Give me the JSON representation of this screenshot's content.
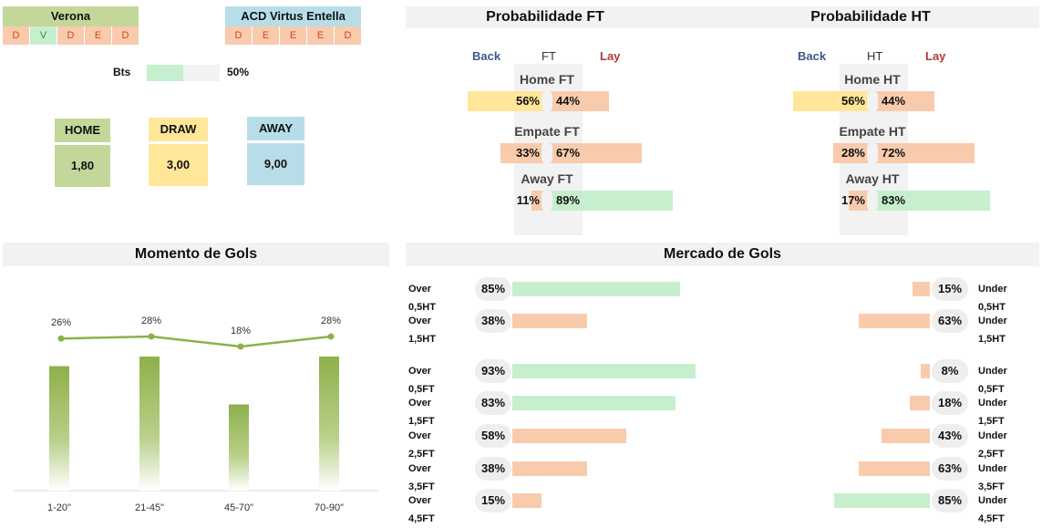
{
  "home_team": {
    "name": "Verona",
    "form": [
      "D",
      "V",
      "D",
      "E",
      "D"
    ]
  },
  "away_team": {
    "name": "ACD Virtus Entella",
    "form": [
      "D",
      "E",
      "E",
      "E",
      "D"
    ]
  },
  "bts": {
    "label": "Bts",
    "value": "50%",
    "fraction": 0.5
  },
  "odds": {
    "home": {
      "label": "HOME",
      "value": "1,80"
    },
    "draw": {
      "label": "DRAW",
      "value": "3,00"
    },
    "away": {
      "label": "AWAY",
      "value": "9,00"
    }
  },
  "prob_ft": {
    "title": "Probabilidade FT",
    "back": "Back",
    "mid": "FT",
    "lay": "Lay",
    "rows": [
      {
        "label": "Home FT",
        "back": "56%",
        "lay": "44%",
        "back_pct": 56,
        "lay_pct": 44
      },
      {
        "label": "Empate FT",
        "back": "33%",
        "lay": "67%",
        "back_pct": 33,
        "lay_pct": 67
      },
      {
        "label": "Away FT",
        "back": "11%",
        "lay": "89%",
        "back_pct": 11,
        "lay_pct": 89
      }
    ]
  },
  "prob_ht": {
    "title": "Probabilidade HT",
    "back": "Back",
    "mid": "HT",
    "lay": "Lay",
    "rows": [
      {
        "label": "Home HT",
        "back": "56%",
        "lay": "44%",
        "back_pct": 56,
        "lay_pct": 44
      },
      {
        "label": "Empate HT",
        "back": "28%",
        "lay": "72%",
        "back_pct": 28,
        "lay_pct": 72
      },
      {
        "label": "Away HT",
        "back": "17%",
        "lay": "83%",
        "back_pct": 17,
        "lay_pct": 83
      }
    ]
  },
  "momento": {
    "title": "Momento de Gols",
    "chart_data": {
      "type": "bar",
      "categories": [
        "1-20\"",
        "21-45\"",
        "45-70\"",
        "70-90\""
      ],
      "values": [
        26,
        28,
        18,
        28
      ],
      "labels": [
        "26%",
        "28%",
        "18%",
        "28%"
      ],
      "ylim": [
        0,
        30
      ],
      "title": "Momento de Gols"
    }
  },
  "mercado": {
    "title": "Mercado de Gols",
    "rows": [
      {
        "over_label": "Over 0,5HT",
        "over": "85%",
        "over_pct": 85,
        "under_label": "Under 0,5HT",
        "under": "15%",
        "under_pct": 15
      },
      {
        "over_label": "Over 1,5HT",
        "over": "38%",
        "over_pct": 38,
        "under_label": "Under 1,5HT",
        "under": "63%",
        "under_pct": 63
      },
      {
        "over_label": "Over 0,5FT",
        "over": "93%",
        "over_pct": 93,
        "under_label": "Under 0,5FT",
        "under": "8%",
        "under_pct": 8
      },
      {
        "over_label": "Over 1,5FT",
        "over": "83%",
        "over_pct": 83,
        "under_label": "Under 1,5FT",
        "under": "18%",
        "under_pct": 18
      },
      {
        "over_label": "Over 2,5FT",
        "over": "58%",
        "over_pct": 58,
        "under_label": "Under 2,5FT",
        "under": "43%",
        "under_pct": 43
      },
      {
        "over_label": "Over 3,5FT",
        "over": "38%",
        "over_pct": 38,
        "under_label": "Under 3,5FT",
        "under": "63%",
        "under_pct": 63
      },
      {
        "over_label": "Over 4,5FT",
        "over": "15%",
        "over_pct": 15,
        "under_label": "Under 4,5FT",
        "under": "85%",
        "under_pct": 85
      }
    ]
  },
  "colors": {
    "green": "#c6efce",
    "salmon": "#f8cbad",
    "yellow": "#ffe699",
    "home": "#c4d79b",
    "draw": "#ffe699",
    "away": "#b7dee8",
    "line": "#8db04a"
  }
}
